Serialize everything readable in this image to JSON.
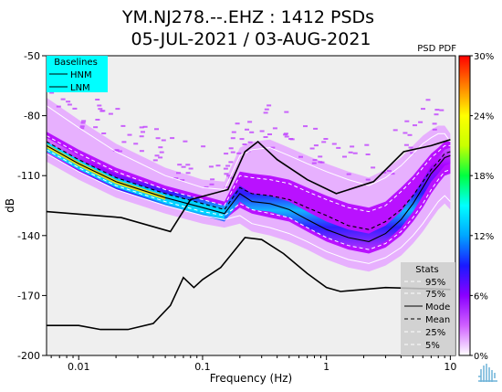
{
  "chart_data": {
    "type": "heatmap",
    "title_line1": "YM.NJ278.--.EHZ : 1412 PSDs",
    "title_line2": "05-JUL-2021 / 03-AUG-2021",
    "top_right_label": "PSD PDF",
    "xlabel": "Frequency (Hz)",
    "ylabel": "dB",
    "xscale": "log",
    "xlim": [
      0.0055,
      11
    ],
    "ylim": [
      -200,
      -50
    ],
    "x_ticks": [
      {
        "value": 0.01,
        "label": "0.01"
      },
      {
        "value": 0.1,
        "label": "0.1"
      },
      {
        "value": 1,
        "label": "1"
      },
      {
        "value": 10,
        "label": "10"
      }
    ],
    "y_ticks": [
      {
        "value": -50,
        "label": "-50"
      },
      {
        "value": -80,
        "label": "-80"
      },
      {
        "value": -110,
        "label": "-110"
      },
      {
        "value": -140,
        "label": "-140"
      },
      {
        "value": -170,
        "label": "-170"
      },
      {
        "value": -200,
        "label": "-200"
      }
    ],
    "colorbar": {
      "range": [
        0,
        30
      ],
      "unit": "%",
      "ticks": [
        {
          "value": 30,
          "label": "30%"
        },
        {
          "value": 24,
          "label": "24%"
        },
        {
          "value": 18,
          "label": "18%"
        },
        {
          "value": 12,
          "label": "12%"
        },
        {
          "value": 6,
          "label": "6%"
        },
        {
          "value": 0,
          "label": "0%"
        }
      ],
      "stops": [
        "#ffffff",
        "#d060ff",
        "#8a00ff",
        "#1a1aff",
        "#00a6ff",
        "#00ffff",
        "#00ff40",
        "#c8ff00",
        "#ffff00",
        "#ff8000",
        "#ff0000"
      ]
    },
    "baselines_legend": {
      "title": "Baselines",
      "items": [
        "HNM",
        "LNM"
      ],
      "bg_color": "#00ffff"
    },
    "stats_legend": {
      "title": "Stats",
      "items": [
        {
          "label": "95%",
          "style": "white-dash"
        },
        {
          "label": "75%",
          "style": "white-dash"
        },
        {
          "label": "Mode",
          "style": "black-solid"
        },
        {
          "label": "Mean",
          "style": "black-dash"
        },
        {
          "label": "25%",
          "style": "white-dash"
        },
        {
          "label": "5%",
          "style": "white-dash"
        }
      ],
      "bg_color": "#cccccc"
    },
    "series": [
      {
        "name": "HNM",
        "color": "#000000",
        "x": [
          0.0055,
          0.022,
          0.055,
          0.08,
          0.16,
          0.22,
          0.28,
          0.4,
          0.7,
          1.2,
          2.4,
          4.2,
          7.0,
          10
        ],
        "y": [
          -128,
          -131,
          -138,
          -122,
          -117,
          -98,
          -93,
          -102,
          -112,
          -119,
          -113,
          -98,
          -95,
          -92
        ]
      },
      {
        "name": "LNM",
        "color": "#000000",
        "x": [
          0.0055,
          0.01,
          0.015,
          0.025,
          0.04,
          0.055,
          0.07,
          0.085,
          0.1,
          0.14,
          0.22,
          0.3,
          0.45,
          0.7,
          1.0,
          1.3,
          3.0,
          10
        ],
        "y": [
          -185,
          -185,
          -187,
          -187,
          -184,
          -175,
          -161,
          -166,
          -162,
          -156,
          -141,
          -142,
          -149,
          -159,
          -166,
          -168,
          -166,
          -167
        ]
      },
      {
        "name": "Mode",
        "color": "#000000",
        "x": [
          0.0055,
          0.01,
          0.02,
          0.05,
          0.1,
          0.15,
          0.2,
          0.25,
          0.35,
          0.5,
          0.7,
          1.0,
          1.5,
          2.2,
          3.0,
          4.0,
          5.0,
          6.0,
          7.0,
          8.0,
          9.0,
          10
        ],
        "y": [
          -95,
          -104,
          -113,
          -121,
          -126,
          -129,
          -119,
          -123,
          -124,
          -127,
          -132,
          -137,
          -141,
          -143,
          -139,
          -132,
          -124,
          -116,
          -109,
          -105,
          -101,
          -100
        ]
      },
      {
        "name": "Mean",
        "color": "#000000",
        "x": [
          0.0055,
          0.01,
          0.02,
          0.05,
          0.1,
          0.15,
          0.2,
          0.25,
          0.35,
          0.5,
          0.7,
          1.0,
          1.5,
          2.2,
          3.0,
          4.0,
          5.0,
          6.0,
          7.0,
          8.0,
          9.0,
          10
        ],
        "y": [
          -93,
          -102,
          -111,
          -119,
          -124,
          -127,
          -116,
          -119,
          -120,
          -122,
          -126,
          -130,
          -135,
          -137,
          -133,
          -127,
          -120,
          -113,
          -107,
          -103,
          -99,
          -98
        ]
      },
      {
        "name": "95%",
        "color": "#ffffff",
        "x": [
          0.0055,
          0.01,
          0.02,
          0.05,
          0.1,
          0.15,
          0.2,
          0.25,
          0.35,
          0.5,
          0.7,
          1.0,
          1.5,
          2.2,
          3.0,
          4.0,
          5.0,
          6.0,
          7.0,
          8.0,
          9.0,
          10
        ],
        "y": [
          -75,
          -86,
          -98,
          -110,
          -116,
          -117,
          -100,
          -97,
          -96,
          -100,
          -104,
          -108,
          -112,
          -115,
          -111,
          -105,
          -99,
          -94,
          -91,
          -89,
          -89,
          -93
        ]
      },
      {
        "name": "75%",
        "color": "#ffffff",
        "x": [
          0.0055,
          0.01,
          0.02,
          0.05,
          0.1,
          0.15,
          0.2,
          0.25,
          0.35,
          0.5,
          0.7,
          1.0,
          1.5,
          2.2,
          3.0,
          4.0,
          5.0,
          6.0,
          7.0,
          8.0,
          9.0,
          10
        ],
        "y": [
          -90,
          -99,
          -108,
          -117,
          -122,
          -125,
          -110,
          -111,
          -112,
          -114,
          -118,
          -122,
          -126,
          -128,
          -125,
          -118,
          -112,
          -106,
          -101,
          -98,
          -95,
          -95
        ]
      },
      {
        "name": "25%",
        "color": "#ffffff",
        "x": [
          0.0055,
          0.01,
          0.02,
          0.05,
          0.1,
          0.15,
          0.2,
          0.25,
          0.35,
          0.5,
          0.7,
          1.0,
          1.5,
          2.2,
          3.0,
          4.0,
          5.0,
          6.0,
          7.0,
          8.0,
          9.0,
          10
        ],
        "y": [
          -97,
          -106,
          -115,
          -123,
          -128,
          -130,
          -124,
          -127,
          -129,
          -131,
          -136,
          -141,
          -145,
          -147,
          -144,
          -138,
          -131,
          -124,
          -117,
          -112,
          -108,
          -107
        ]
      },
      {
        "name": "5%",
        "color": "#ffffff",
        "x": [
          0.0055,
          0.01,
          0.02,
          0.05,
          0.1,
          0.15,
          0.2,
          0.25,
          0.35,
          0.5,
          0.7,
          1.0,
          1.5,
          2.2,
          3.0,
          4.0,
          5.0,
          6.0,
          7.0,
          8.0,
          9.0,
          10
        ],
        "y": [
          -99,
          -108,
          -117,
          -125,
          -130,
          -132,
          -130,
          -134,
          -136,
          -139,
          -143,
          -148,
          -152,
          -154,
          -151,
          -146,
          -140,
          -134,
          -128,
          -123,
          -120,
          -123
        ]
      }
    ]
  }
}
